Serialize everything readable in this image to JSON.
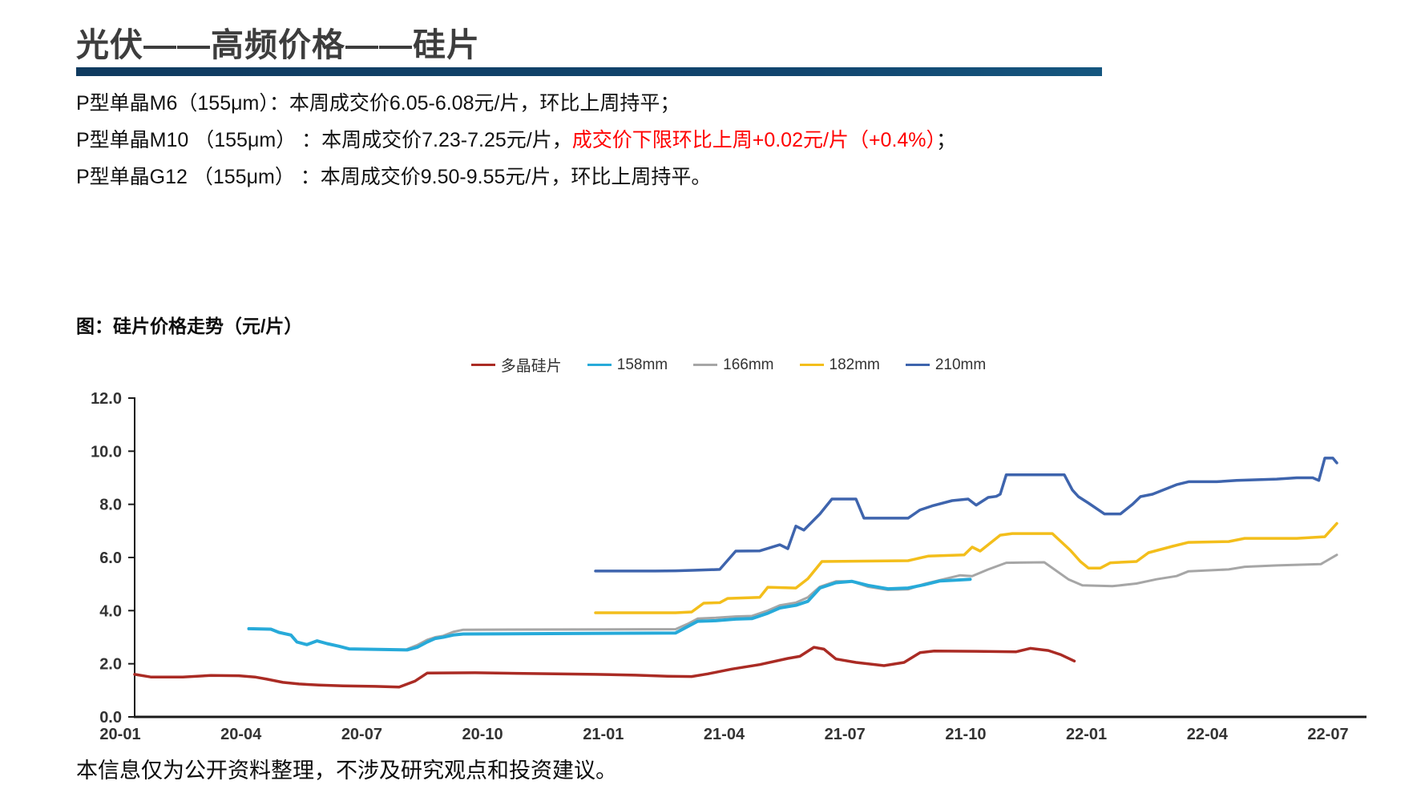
{
  "header": {
    "title": "光伏——高频价格——硅片"
  },
  "bullets": [
    {
      "parts": [
        {
          "text": "P型单晶M6（155μm）：本周成交价6.05-6.08元/片，环比上周持平；",
          "color": "#111111"
        }
      ]
    },
    {
      "parts": [
        {
          "text": "P型单晶M10 （155μm） ：本周成交价7.23-7.25元/片，",
          "color": "#111111"
        },
        {
          "text": "成交价下限环比上周+0.02元/片（+0.4%）",
          "color": "#ff0000"
        },
        {
          "text": "；",
          "color": "#111111"
        }
      ]
    },
    {
      "parts": [
        {
          "text": "P型单晶G12 （155μm） ：本周成交价9.50-9.55元/片，环比上周持平。",
          "color": "#111111"
        }
      ]
    }
  ],
  "chart_caption": "图：硅片价格走势（元/片）",
  "footer": {
    "disclaimer": "本信息仅为公开资料整理，不涉及研究观点和投资建议。"
  },
  "colors": {
    "title_text": "#3d3d3d",
    "rule_navy": "#0f3a5f",
    "highlight_red": "#ff0000",
    "axis_line": "#1a1a1a"
  },
  "chart_data": {
    "type": "line",
    "title": "图：硅片价格走势（元/片）",
    "xlabel": "",
    "ylabel": "元/片",
    "ylim": [
      0,
      12
    ],
    "grid": false,
    "legend_position": "top",
    "x_is_months_since": "2020-01",
    "months_per_tick": 3,
    "x_ticks": [
      "20-01",
      "20-04",
      "20-07",
      "20-10",
      "21-01",
      "21-04",
      "21-07",
      "21-10",
      "22-01",
      "22-04",
      "22-07"
    ],
    "y_ticks": [
      "0.0",
      "2.0",
      "4.0",
      "6.0",
      "8.0",
      "10.0",
      "12.0"
    ],
    "series": [
      {
        "name": "多晶硅片",
        "color": "#aa2b24",
        "width": 3.5,
        "points": [
          [
            0,
            1.6
          ],
          [
            0.4,
            1.5
          ],
          [
            1.2,
            1.5
          ],
          [
            1.9,
            1.56
          ],
          [
            2.6,
            1.55
          ],
          [
            3,
            1.5
          ],
          [
            3.3,
            1.42
          ],
          [
            3.7,
            1.3
          ],
          [
            4.1,
            1.24
          ],
          [
            4.6,
            1.2
          ],
          [
            5.2,
            1.17
          ],
          [
            6,
            1.15
          ],
          [
            6.6,
            1.12
          ],
          [
            7,
            1.35
          ],
          [
            7.3,
            1.65
          ],
          [
            8.5,
            1.66
          ],
          [
            9.5,
            1.64
          ],
          [
            10.5,
            1.62
          ],
          [
            11.5,
            1.6
          ],
          [
            12.5,
            1.57
          ],
          [
            13.3,
            1.53
          ],
          [
            13.9,
            1.52
          ],
          [
            14.3,
            1.62
          ],
          [
            14.9,
            1.8
          ],
          [
            15.6,
            1.97
          ],
          [
            16.3,
            2.2
          ],
          [
            16.6,
            2.28
          ],
          [
            16.95,
            2.62
          ],
          [
            17.2,
            2.55
          ],
          [
            17.5,
            2.18
          ],
          [
            18,
            2.05
          ],
          [
            18.7,
            1.93
          ],
          [
            19.2,
            2.05
          ],
          [
            19.6,
            2.42
          ],
          [
            19.95,
            2.48
          ],
          [
            21,
            2.47
          ],
          [
            22,
            2.45
          ],
          [
            22.35,
            2.58
          ],
          [
            22.8,
            2.5
          ],
          [
            23.1,
            2.35
          ],
          [
            23.45,
            2.1
          ]
        ]
      },
      {
        "name": "158mm",
        "color": "#27aad9",
        "width": 4,
        "points": [
          [
            2.85,
            3.32
          ],
          [
            3.4,
            3.3
          ],
          [
            3.6,
            3.18
          ],
          [
            3.9,
            3.08
          ],
          [
            4.05,
            2.82
          ],
          [
            4.3,
            2.72
          ],
          [
            4.55,
            2.86
          ],
          [
            4.8,
            2.76
          ],
          [
            5.1,
            2.66
          ],
          [
            5.35,
            2.56
          ],
          [
            6.8,
            2.52
          ],
          [
            7.05,
            2.62
          ],
          [
            7.3,
            2.82
          ],
          [
            7.5,
            2.95
          ],
          [
            7.7,
            3
          ],
          [
            7.95,
            3.08
          ],
          [
            8.2,
            3.12
          ],
          [
            13.5,
            3.16
          ],
          [
            13.8,
            3.4
          ],
          [
            14.05,
            3.6
          ],
          [
            14.5,
            3.62
          ],
          [
            15,
            3.68
          ],
          [
            15.4,
            3.7
          ],
          [
            15.8,
            3.9
          ],
          [
            16.1,
            4.1
          ],
          [
            16.5,
            4.2
          ],
          [
            16.8,
            4.35
          ],
          [
            17.1,
            4.85
          ],
          [
            17.5,
            5.05
          ],
          [
            17.9,
            5.1
          ],
          [
            18.3,
            4.95
          ],
          [
            18.8,
            4.82
          ],
          [
            19.3,
            4.85
          ],
          [
            19.7,
            4.97
          ],
          [
            20.1,
            5.12
          ],
          [
            20.5,
            5.15
          ],
          [
            20.85,
            5.18
          ]
        ]
      },
      {
        "name": "166mm",
        "color": "#a6a6a6",
        "width": 3,
        "points": [
          [
            6.8,
            2.55
          ],
          [
            7.05,
            2.7
          ],
          [
            7.3,
            2.9
          ],
          [
            7.5,
            3
          ],
          [
            7.7,
            3.05
          ],
          [
            7.95,
            3.2
          ],
          [
            8.2,
            3.28
          ],
          [
            13.5,
            3.3
          ],
          [
            13.8,
            3.5
          ],
          [
            14.05,
            3.7
          ],
          [
            14.5,
            3.73
          ],
          [
            15,
            3.78
          ],
          [
            15.4,
            3.8
          ],
          [
            15.8,
            4
          ],
          [
            16.1,
            4.2
          ],
          [
            16.5,
            4.3
          ],
          [
            16.8,
            4.5
          ],
          [
            17.1,
            4.9
          ],
          [
            17.5,
            5.1
          ],
          [
            17.9,
            5.1
          ],
          [
            18.3,
            4.9
          ],
          [
            18.8,
            4.78
          ],
          [
            19.3,
            4.8
          ],
          [
            19.7,
            5
          ],
          [
            20.1,
            5.15
          ],
          [
            20.6,
            5.33
          ],
          [
            20.9,
            5.3
          ],
          [
            21.3,
            5.55
          ],
          [
            21.75,
            5.8
          ],
          [
            22.7,
            5.82
          ],
          [
            23.3,
            5.18
          ],
          [
            23.65,
            4.95
          ],
          [
            24.4,
            4.92
          ],
          [
            25,
            5.02
          ],
          [
            25.5,
            5.18
          ],
          [
            26,
            5.3
          ],
          [
            26.3,
            5.48
          ],
          [
            27.3,
            5.55
          ],
          [
            27.7,
            5.65
          ],
          [
            28.5,
            5.7
          ],
          [
            29.6,
            5.75
          ],
          [
            30,
            6.1
          ]
        ]
      },
      {
        "name": "182mm",
        "color": "#f3be1b",
        "width": 3.5,
        "points": [
          [
            11.5,
            3.92
          ],
          [
            13.5,
            3.92
          ],
          [
            13.9,
            3.95
          ],
          [
            14.2,
            4.28
          ],
          [
            14.6,
            4.3
          ],
          [
            14.8,
            4.46
          ],
          [
            15.6,
            4.5
          ],
          [
            15.8,
            4.88
          ],
          [
            16.5,
            4.85
          ],
          [
            16.8,
            5.2
          ],
          [
            17.15,
            5.85
          ],
          [
            19.3,
            5.88
          ],
          [
            19.8,
            6.05
          ],
          [
            20.7,
            6.1
          ],
          [
            20.9,
            6.39
          ],
          [
            21.1,
            6.24
          ],
          [
            21.6,
            6.84
          ],
          [
            21.9,
            6.9
          ],
          [
            22.9,
            6.9
          ],
          [
            23.35,
            6.27
          ],
          [
            23.6,
            5.85
          ],
          [
            23.8,
            5.6
          ],
          [
            24.1,
            5.6
          ],
          [
            24.35,
            5.8
          ],
          [
            25,
            5.85
          ],
          [
            25.3,
            6.18
          ],
          [
            25.9,
            6.42
          ],
          [
            26.3,
            6.57
          ],
          [
            27.3,
            6.6
          ],
          [
            27.7,
            6.72
          ],
          [
            29,
            6.72
          ],
          [
            29.7,
            6.78
          ],
          [
            30,
            7.28
          ]
        ]
      },
      {
        "name": "210mm",
        "color": "#3e64ad",
        "width": 3.5,
        "points": [
          [
            11.5,
            5.49
          ],
          [
            13,
            5.49
          ],
          [
            13.5,
            5.5
          ],
          [
            14,
            5.52
          ],
          [
            14.6,
            5.55
          ],
          [
            15,
            6.24
          ],
          [
            15.6,
            6.25
          ],
          [
            16.1,
            6.48
          ],
          [
            16.3,
            6.33
          ],
          [
            16.5,
            7.18
          ],
          [
            16.7,
            7.03
          ],
          [
            17.1,
            7.64
          ],
          [
            17.4,
            8.2
          ],
          [
            18,
            8.2
          ],
          [
            18.2,
            7.48
          ],
          [
            19.3,
            7.48
          ],
          [
            19.6,
            7.79
          ],
          [
            19.9,
            7.94
          ],
          [
            20.4,
            8.14
          ],
          [
            20.8,
            8.2
          ],
          [
            21,
            7.97
          ],
          [
            21.3,
            8.26
          ],
          [
            21.5,
            8.3
          ],
          [
            21.6,
            8.38
          ],
          [
            21.75,
            9.11
          ],
          [
            23.2,
            9.11
          ],
          [
            23.4,
            8.54
          ],
          [
            23.55,
            8.29
          ],
          [
            23.8,
            8.05
          ],
          [
            24.2,
            7.64
          ],
          [
            24.6,
            7.64
          ],
          [
            24.9,
            8
          ],
          [
            25.1,
            8.29
          ],
          [
            25.4,
            8.38
          ],
          [
            26,
            8.74
          ],
          [
            26.3,
            8.85
          ],
          [
            27,
            8.85
          ],
          [
            27.5,
            8.9
          ],
          [
            28.5,
            8.95
          ],
          [
            29,
            9
          ],
          [
            29.4,
            9
          ],
          [
            29.55,
            8.9
          ],
          [
            29.7,
            9.74
          ],
          [
            29.9,
            9.74
          ],
          [
            30,
            9.56
          ]
        ]
      }
    ]
  }
}
